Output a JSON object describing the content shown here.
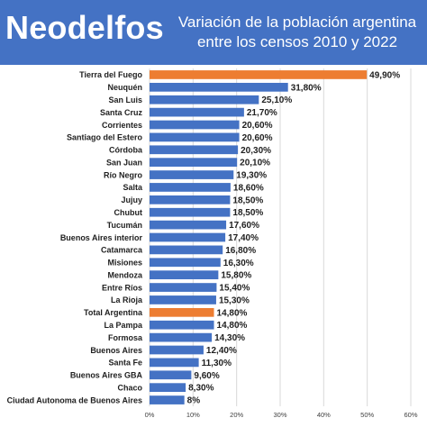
{
  "header": {
    "brand": "Neodelfos",
    "title_line1": "Variación de la población argentina",
    "title_line2": "entre los censos 2010 y 2022"
  },
  "colors": {
    "header_bg": "#4472c4",
    "bar": "#4472c4",
    "highlight": "#ed7d31",
    "grid": "#d9d9d9"
  },
  "chart_data": {
    "type": "bar",
    "orientation": "horizontal",
    "title": "Variación de la población argentina entre los censos 2010 y 2022",
    "xlim": [
      0,
      60
    ],
    "xticks": [
      "0%",
      "10%",
      "20%",
      "30%",
      "40%",
      "50%",
      "60%"
    ],
    "grid": true,
    "highlighted": [
      "Tierra del Fuego",
      "Total Argentina"
    ],
    "categories": [
      "Tierra del Fuego",
      "Neuquén",
      "San Luis",
      "Santa Cruz",
      "Corrientes",
      "Santiago del Estero",
      "Córdoba",
      "San Juan",
      "Río Negro",
      "Salta",
      "Jujuy",
      "Chubut",
      "Tucumán",
      "Buenos Aires interior",
      "Catamarca",
      "Misiones",
      "Mendoza",
      "Entre Ríos",
      "La Rioja",
      "Total Argentina",
      "La Pampa",
      "Formosa",
      "Buenos Aires",
      "Santa Fe",
      "Buenos Aires GBA",
      "Chaco",
      "Ciudad Autonoma de Buenos Aires"
    ],
    "values": [
      49.9,
      31.8,
      25.1,
      21.7,
      20.6,
      20.6,
      20.3,
      20.1,
      19.3,
      18.6,
      18.5,
      18.5,
      17.6,
      17.4,
      16.8,
      16.3,
      15.8,
      15.4,
      15.3,
      14.8,
      14.8,
      14.3,
      12.4,
      11.3,
      9.6,
      8.3,
      8
    ],
    "labels": [
      "49,90%",
      "31,80%",
      "25,10%",
      "21,70%",
      "20,60%",
      "20,60%",
      "20,30%",
      "20,10%",
      "19,30%",
      "18,60%",
      "18,50%",
      "18,50%",
      "17,60%",
      "17,40%",
      "16,80%",
      "16,30%",
      "15,80%",
      "15,40%",
      "15,30%",
      "14,80%",
      "14,80%",
      "14,30%",
      "12,40%",
      "11,30%",
      "9,60%",
      "8,30%",
      "8%"
    ]
  }
}
